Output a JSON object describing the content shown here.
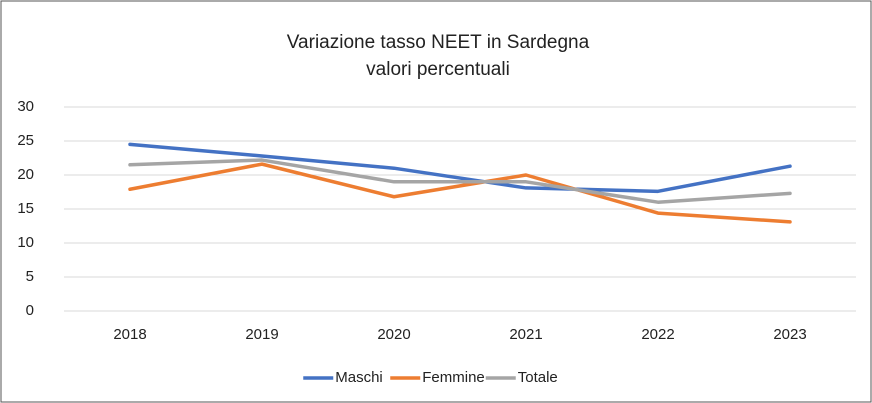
{
  "chart_data": {
    "type": "line",
    "title": "Variazione tasso NEET in Sardegna",
    "subtitle": "valori percentuali",
    "categories": [
      "2018",
      "2019",
      "2020",
      "2021",
      "2022",
      "2023"
    ],
    "series": [
      {
        "name": "Maschi",
        "color": "#4472c4",
        "values": [
          24.5,
          22.8,
          21.0,
          18.1,
          17.6,
          21.3
        ]
      },
      {
        "name": "Femmine",
        "color": "#ed7d31",
        "values": [
          17.9,
          21.6,
          16.8,
          20.0,
          14.4,
          13.1
        ]
      },
      {
        "name": "Totale",
        "color": "#a5a5a5",
        "values": [
          21.5,
          22.2,
          19.0,
          19.0,
          16.0,
          17.3
        ]
      }
    ],
    "ylim": [
      0,
      30
    ],
    "yticks": [
      0,
      5,
      10,
      15,
      20,
      25,
      30
    ],
    "grid": true,
    "legend": "bottom"
  }
}
